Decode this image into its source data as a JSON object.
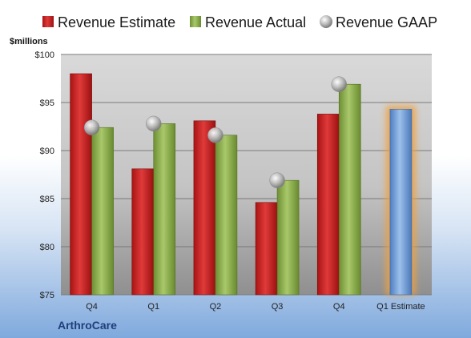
{
  "chart_data": {
    "type": "bar",
    "categories": [
      "Q4",
      "Q1",
      "Q2",
      "Q3",
      "Q4",
      "Q1 Estimate"
    ],
    "series": [
      {
        "name": "Revenue Estimate",
        "values": [
          98.0,
          88.1,
          93.1,
          84.6,
          93.8,
          null
        ]
      },
      {
        "name": "Revenue Actual",
        "values": [
          92.4,
          92.8,
          91.6,
          86.9,
          96.9,
          94.3
        ]
      },
      {
        "name": "Revenue GAAP",
        "values": [
          92.4,
          92.8,
          91.6,
          86.9,
          96.9,
          null
        ]
      }
    ],
    "highlight": {
      "category_index": 5,
      "series": "Revenue Actual",
      "label": "Q1 Estimate"
    },
    "ylabel": "$millions",
    "ylim": [
      75,
      100
    ],
    "yticks": [
      "$100",
      "$95",
      "$90",
      "$85",
      "$80",
      "$75"
    ],
    "ytick_values": [
      100,
      95,
      90,
      85,
      80,
      75
    ],
    "grid": true,
    "legend_position": "top"
  },
  "footer": {
    "company": "ArthroCare"
  },
  "colors": {
    "estimate": "#cc2a2a",
    "actual": "#8fb050",
    "gaap": "#b5b5b5",
    "highlight": "#7aa6dc",
    "highlight_glow": "#f0a040"
  }
}
